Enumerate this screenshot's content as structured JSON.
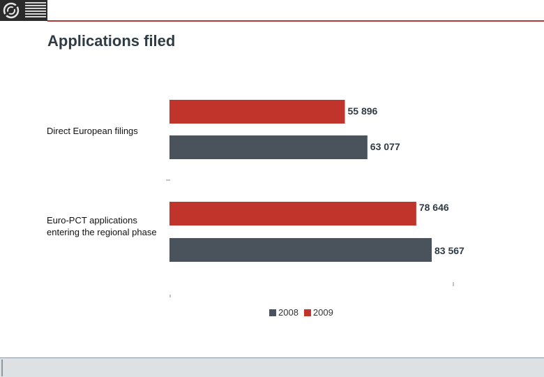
{
  "header": {
    "title": "Applications filed"
  },
  "colors": {
    "y2008": "#4a535c",
    "y2009": "#c0342c",
    "accent_rule": "#b23a34"
  },
  "chart_data": {
    "type": "bar",
    "orientation": "horizontal",
    "title": "Applications filed",
    "categories": [
      "Direct European filings",
      "Euro-PCT applications entering the regional phase"
    ],
    "series": [
      {
        "name": "2008",
        "values": [
          63077,
          83567
        ]
      },
      {
        "name": "2009",
        "values": [
          55896,
          78646
        ]
      }
    ],
    "value_labels": {
      "2008": [
        "63 077",
        "83 567"
      ],
      "2009": [
        "55 896",
        "78 646"
      ]
    },
    "xlim": [
      0,
      90000
    ],
    "legend": [
      "2008",
      "2009"
    ],
    "legend_position": "bottom",
    "grid": false
  }
}
